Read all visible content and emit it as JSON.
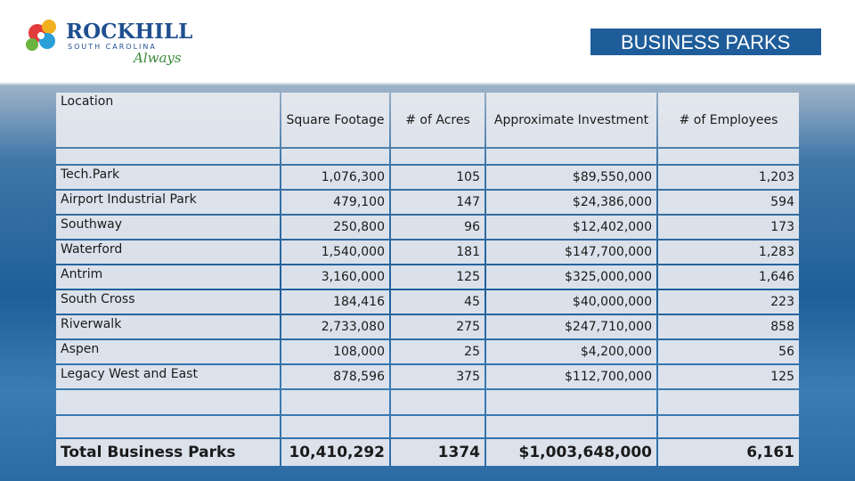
{
  "logo": {
    "name": "ROCKHILL",
    "state": "SOUTH CAROLINA",
    "tagline": "Always"
  },
  "header": {
    "title": "BUSINESS PARKS"
  },
  "table": {
    "columns": [
      "Location",
      "Square Footage",
      "# of Acres",
      "Approximate Investment",
      "# of Employees"
    ],
    "rows": [
      [
        "Tech.Park",
        "1,076,300",
        "105",
        "$89,550,000",
        "1,203"
      ],
      [
        "Airport Industrial Park",
        "479,100",
        "147",
        "$24,386,000",
        "594"
      ],
      [
        "Southway",
        "250,800",
        "96",
        "$12,402,000",
        "173"
      ],
      [
        "Waterford",
        "1,540,000",
        "181",
        "$147,700,000",
        "1,283"
      ],
      [
        "Antrim",
        "3,160,000",
        "125",
        "$325,000,000",
        "1,646"
      ],
      [
        "South Cross",
        "184,416",
        "45",
        "$40,000,000",
        "223"
      ],
      [
        "Riverwalk",
        "2,733,080",
        "275",
        "$247,710,000",
        "858"
      ],
      [
        "Aspen",
        "108,000",
        "25",
        "$4,200,000",
        "56"
      ],
      [
        "Legacy West and East",
        "878,596",
        "375",
        "$112,700,000",
        "125"
      ]
    ],
    "total": [
      "Total Business Parks",
      "10,410,292",
      "1374",
      "$1,003,648,000",
      "6,161"
    ]
  }
}
